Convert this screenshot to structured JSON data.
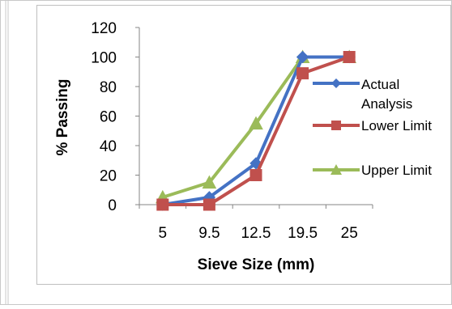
{
  "chart_data": {
    "type": "line",
    "title": "",
    "xlabel": "Sieve Size (mm)",
    "ylabel": "% Passing",
    "categories": [
      "5",
      "9.5",
      "12.5",
      "19.5",
      "25"
    ],
    "ylim": [
      0,
      120
    ],
    "yticks": [
      "0",
      "20",
      "40",
      "60",
      "80",
      "100",
      "120"
    ],
    "grid": false,
    "legend_position": "right",
    "series": [
      {
        "name": "Actual Analysis",
        "values": [
          0,
          5,
          28,
          100,
          100
        ],
        "color": "#4472C4",
        "marker": "diamond"
      },
      {
        "name": "Lower Limit",
        "values": [
          0,
          0,
          20,
          89,
          100
        ],
        "color": "#C0504D",
        "marker": "square"
      },
      {
        "name": "Upper Limit",
        "values": [
          5,
          15,
          55,
          100,
          100
        ],
        "color": "#9BBB59",
        "marker": "triangle"
      }
    ]
  }
}
